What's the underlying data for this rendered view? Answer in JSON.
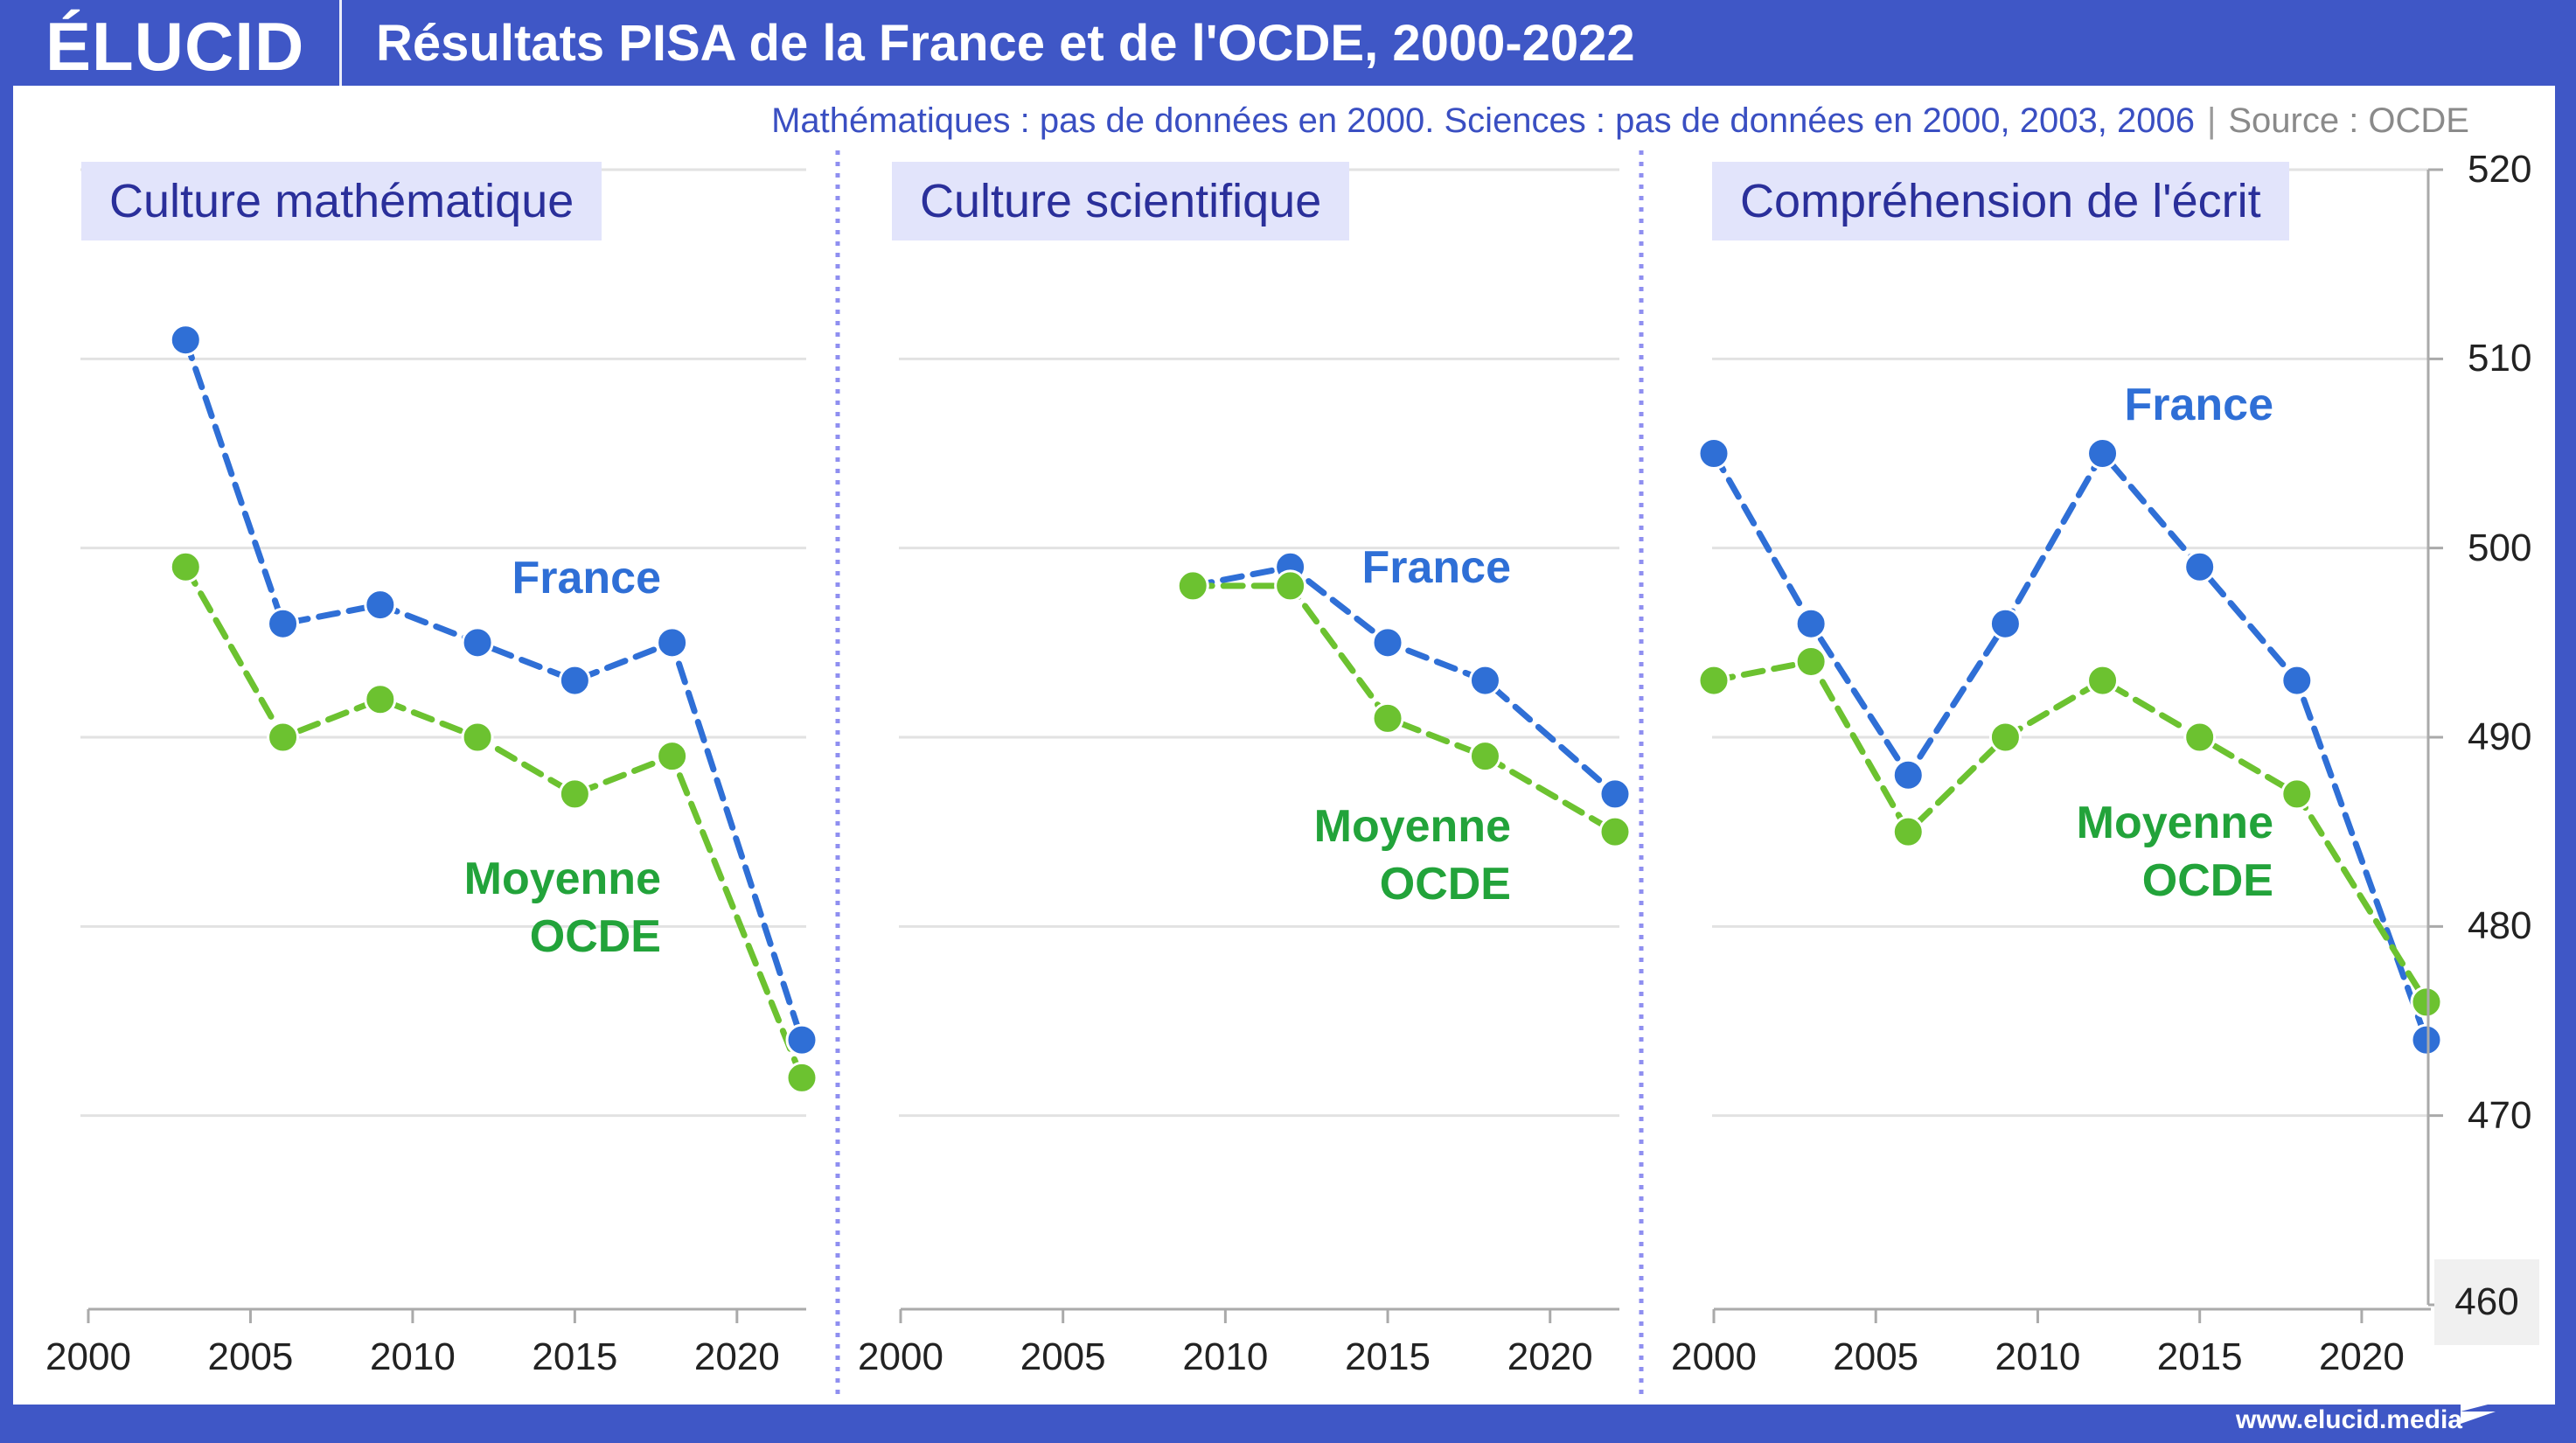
{
  "header": {
    "logo": "ÉLUCID",
    "title": "Résultats PISA de la France et de l'OCDE, 2000-2022"
  },
  "subtitle": {
    "note": "Mathématiques : pas de données en 2000. Sciences : pas de données en 2000, 2003, 2006",
    "source": "Source : OCDE"
  },
  "footer": {
    "url": "www.elucid.media"
  },
  "colors": {
    "brand": "#3f57c6",
    "france": "#2f6fd6",
    "ocde_line": "#6cc230",
    "ocde_label": "#22a33a",
    "panel_title_bg": "#e2e4fb",
    "panel_title_text": "#2a2f9a",
    "separator": "#8f8ff0"
  },
  "chart_data": [
    {
      "type": "line",
      "title": "Culture mathématique",
      "x_ticks": [
        "2000",
        "2005",
        "2010",
        "2015",
        "2020"
      ],
      "xlim": [
        2000,
        2022
      ],
      "ylim": [
        460,
        520
      ],
      "y_ticks": [
        "460",
        "470",
        "480",
        "490",
        "500",
        "510",
        "520"
      ],
      "grid": true,
      "series": [
        {
          "name": "France",
          "x": [
            2003,
            2006,
            2009,
            2012,
            2015,
            2018,
            2022
          ],
          "values": [
            511,
            496,
            497,
            495,
            493,
            495,
            474
          ]
        },
        {
          "name": "Moyenne OCDE",
          "x": [
            2003,
            2006,
            2009,
            2012,
            2015,
            2018,
            2022
          ],
          "values": [
            499,
            490,
            492,
            490,
            487,
            489,
            472
          ]
        }
      ],
      "labels": {
        "france": "France",
        "ocde_line1": "Moyenne",
        "ocde_line2": "OCDE"
      }
    },
    {
      "type": "line",
      "title": "Culture scientifique",
      "x_ticks": [
        "2000",
        "2005",
        "2010",
        "2015",
        "2020"
      ],
      "xlim": [
        2000,
        2022
      ],
      "ylim": [
        460,
        520
      ],
      "grid": true,
      "series": [
        {
          "name": "France",
          "x": [
            2009,
            2012,
            2015,
            2018,
            2022
          ],
          "values": [
            498,
            499,
            495,
            493,
            487
          ]
        },
        {
          "name": "Moyenne OCDE",
          "x": [
            2009,
            2012,
            2015,
            2018,
            2022
          ],
          "values": [
            498,
            498,
            491,
            489,
            485
          ]
        }
      ],
      "labels": {
        "france": "France",
        "ocde_line1": "Moyenne",
        "ocde_line2": "OCDE"
      }
    },
    {
      "type": "line",
      "title": "Compréhension de l'écrit",
      "x_ticks": [
        "2000",
        "2005",
        "2010",
        "2015",
        "2020"
      ],
      "xlim": [
        2000,
        2022
      ],
      "ylim": [
        460,
        520
      ],
      "grid": true,
      "series": [
        {
          "name": "France",
          "x": [
            2000,
            2003,
            2006,
            2009,
            2012,
            2015,
            2018,
            2022
          ],
          "values": [
            505,
            496,
            488,
            496,
            505,
            499,
            493,
            474
          ]
        },
        {
          "name": "Moyenne OCDE",
          "x": [
            2000,
            2003,
            2006,
            2009,
            2012,
            2015,
            2018,
            2022
          ],
          "values": [
            493,
            494,
            485,
            490,
            493,
            490,
            487,
            476
          ]
        }
      ],
      "labels": {
        "france": "France",
        "ocde_line1": "Moyenne",
        "ocde_line2": "OCDE"
      }
    }
  ]
}
